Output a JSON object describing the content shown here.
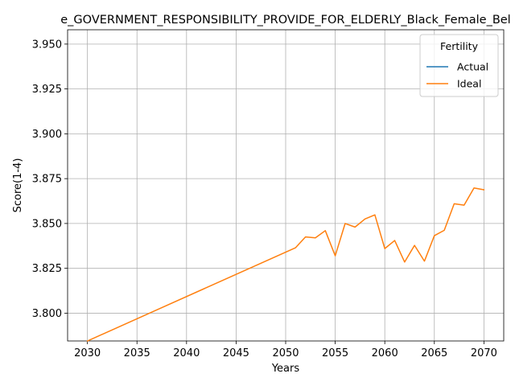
{
  "chart_data": {
    "type": "line",
    "title": "e_GOVERNMENT_RESPONSIBILITY_PROVIDE_FOR_ELDERLY_Black_Female_Bel",
    "xlabel": "Years",
    "ylabel": "Score(1-4)",
    "xlim": [
      2028,
      2072
    ],
    "ylim": [
      3.7845,
      3.958
    ],
    "xticks": [
      2030,
      2035,
      2040,
      2045,
      2050,
      2055,
      2060,
      2065,
      2070
    ],
    "yticks": [
      3.8,
      3.825,
      3.85,
      3.875,
      3.9,
      3.925,
      3.95
    ],
    "ytick_labels": [
      "3.800",
      "3.825",
      "3.850",
      "3.875",
      "3.900",
      "3.925",
      "3.950"
    ],
    "grid": true,
    "legend": {
      "title": "Fertility",
      "placement": "top-right",
      "entries": [
        "Actual",
        "Ideal"
      ]
    },
    "series": [
      {
        "name": "Actual",
        "color": "#1f77b4",
        "x": [],
        "y": []
      },
      {
        "name": "Ideal",
        "color": "#ff7f0e",
        "x": [
          2030,
          2051,
          2052,
          2053,
          2054,
          2055,
          2056,
          2057,
          2058,
          2059,
          2060,
          2061,
          2062,
          2063,
          2064,
          2065,
          2066,
          2067,
          2068,
          2069,
          2070
        ],
        "y": [
          3.7845,
          3.8365,
          3.8425,
          3.842,
          3.846,
          3.832,
          3.85,
          3.848,
          3.8525,
          3.8548,
          3.836,
          3.8405,
          3.8285,
          3.8378,
          3.829,
          3.8432,
          3.8462,
          3.861,
          3.8602,
          3.8698,
          3.8688
        ]
      }
    ]
  }
}
